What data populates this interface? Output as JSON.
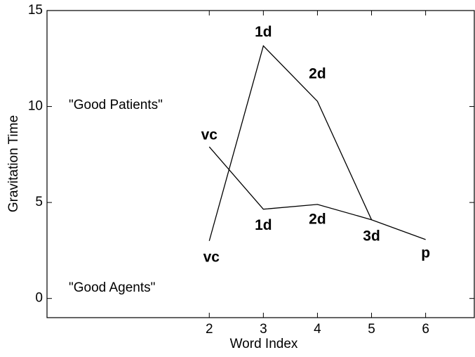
{
  "chart_data": {
    "type": "line",
    "x_label": "Word Index",
    "y_label": "Gravitation Time",
    "annotations": [
      "\"Good Patients\"",
      "\"Good Agents\""
    ],
    "series": [
      {
        "color": "#000000",
        "x": [
          2,
          3,
          4,
          5,
          6
        ],
        "values": [
          7.9,
          4.65,
          4.9,
          4.1,
          3.07
        ],
        "point_labels": [
          "vc",
          "1d",
          "2d",
          "3d",
          "p"
        ]
      },
      {
        "color": "#000000",
        "x": [
          2,
          3,
          4,
          5
        ],
        "values": [
          3.0,
          13.16,
          10.27,
          4.1
        ],
        "point_labels": [
          "vc",
          "1d",
          "2d",
          null
        ]
      }
    ],
    "xlim": [
      -1,
      6.9
    ],
    "ylim": [
      -1,
      15
    ],
    "xticks": [
      2,
      3,
      4,
      5,
      6
    ],
    "yticks": [
      0,
      5,
      10,
      15
    ]
  }
}
